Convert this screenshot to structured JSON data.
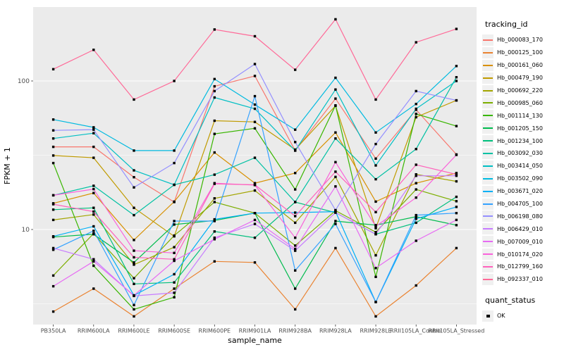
{
  "figure": {
    "background": "#FFFFFF",
    "panel_background": "#EBEBEB",
    "gridline_color": "#FFFFFF",
    "tick_label_color": "#4D4D4D",
    "axis_title_color": "#000000",
    "marker_color": "#000000"
  },
  "chart_data": {
    "type": "line",
    "title": "",
    "xlabel": "sample_name",
    "ylabel": "FPKM + 1",
    "y_scale": "log10",
    "y_ticks": [
      10,
      100
    ],
    "y_minor_ticks": [
      3.162,
      31.62
    ],
    "ylim": [
      2.3,
      320
    ],
    "grid": true,
    "marker": {
      "shape": "square",
      "color": "#000000"
    },
    "categories": [
      "PB350LA",
      "RRIM600LA",
      "RRIM600LE",
      "RRIM600SE",
      "RRIM600PE",
      "RRIM901LA",
      "RRIM928BA",
      "RRIM928LA",
      "RRIM928LE",
      "RRII105LA_Control",
      "RRII105LA_Stressed"
    ],
    "legend": {
      "title": "tracking_id",
      "position": "right"
    },
    "quant_status": {
      "title": "quant_status",
      "items": [
        {
          "label": "OK",
          "marker": "black-square"
        }
      ]
    },
    "series": [
      {
        "name": "Hb_000083_170",
        "color": "#F8766D",
        "values": [
          36,
          36,
          22.5,
          15.3,
          92,
          108,
          34,
          76,
          30,
          64,
          32
        ]
      },
      {
        "name": "Hb_000125_100",
        "color": "#EA8331",
        "values": [
          2.8,
          4.0,
          2.6,
          4.0,
          6.1,
          6.0,
          2.9,
          7.5,
          2.6,
          4.2,
          7.5
        ]
      },
      {
        "name": "Hb_000161_060",
        "color": "#D89000",
        "values": [
          15,
          17.6,
          8.5,
          15.4,
          33,
          20.5,
          24,
          45,
          15.4,
          20.5,
          24
        ]
      },
      {
        "name": "Hb_000479_190",
        "color": "#C09B00",
        "values": [
          31.5,
          30.4,
          14,
          9.0,
          54,
          53,
          34.5,
          68,
          10.2,
          57,
          74
        ]
      },
      {
        "name": "Hb_000692_220",
        "color": "#A3A500",
        "values": [
          11.6,
          12.6,
          5.8,
          7.6,
          16.2,
          18.3,
          11.1,
          22.6,
          6.7,
          23.5,
          21.1
        ]
      },
      {
        "name": "Hb_000985_060",
        "color": "#7CAE00",
        "values": [
          4.9,
          9.4,
          4.7,
          9.1,
          15.3,
          12.9,
          7.8,
          13.4,
          9.6,
          18.6,
          15.5
        ]
      },
      {
        "name": "Hb_001114_130",
        "color": "#39B600",
        "values": [
          28,
          5.7,
          2.9,
          3.5,
          44,
          48,
          18.6,
          68.5,
          4.8,
          60,
          49.7
        ]
      },
      {
        "name": "Hb_001205_150",
        "color": "#00BB4E",
        "values": [
          8.9,
          9.3,
          6.0,
          10.8,
          11.5,
          12.9,
          4.0,
          11.4,
          10.7,
          12.2,
          10.7
        ]
      },
      {
        "name": "Hb_001234_100",
        "color": "#00BF7D",
        "values": [
          13.6,
          14.0,
          4.3,
          4.4,
          9.7,
          8.8,
          15.3,
          13.0,
          9.3,
          11.1,
          16.6
        ]
      },
      {
        "name": "Hb_003092_030",
        "color": "#00C1A3",
        "values": [
          17,
          19.7,
          12.5,
          20,
          23.4,
          30.4,
          15.3,
          41,
          21.8,
          34.8,
          106
        ]
      },
      {
        "name": "Hb_003414_050",
        "color": "#00BFC4",
        "values": [
          41,
          44.5,
          25,
          20,
          77.4,
          65,
          34,
          87.5,
          27,
          65,
          100
        ]
      },
      {
        "name": "Hb_003502_090",
        "color": "#00BAE0",
        "values": [
          55,
          48.7,
          34,
          34,
          103,
          69.3,
          47,
          105,
          45,
          70,
          126
        ]
      },
      {
        "name": "Hb_003671_020",
        "color": "#00B0F6",
        "values": [
          9.0,
          10.5,
          3.6,
          5.0,
          11.7,
          12.9,
          13,
          13.2,
          3.25,
          11.8,
          14.2
        ]
      },
      {
        "name": "Hb_004705_100",
        "color": "#35A2FF",
        "values": [
          7.3,
          9.8,
          3.1,
          11.4,
          11.4,
          79,
          5.3,
          10.9,
          3.25,
          12.5,
          12.9
        ]
      },
      {
        "name": "Hb_006198_080",
        "color": "#9590FF",
        "values": [
          46.5,
          47,
          19.2,
          28,
          85.5,
          130,
          38.8,
          13.5,
          37.6,
          85.5,
          74
        ]
      },
      {
        "name": "Hb_006429_010",
        "color": "#C77CFF",
        "values": [
          7.5,
          6.3,
          3.57,
          3.75,
          8.8,
          10.9,
          7.2,
          13,
          9.3,
          23,
          23
        ]
      },
      {
        "name": "Hb_007009_010",
        "color": "#E76BF3",
        "values": [
          4.15,
          6.1,
          3.6,
          6.15,
          8.6,
          11.6,
          7.4,
          19.5,
          5.5,
          8.4,
          11.6
        ]
      },
      {
        "name": "Hb_010174_020",
        "color": "#FA62DB",
        "values": [
          17,
          18.7,
          7.2,
          6.95,
          20.5,
          19.9,
          8.8,
          28.4,
          10.5,
          16.4,
          31.8
        ]
      },
      {
        "name": "Hb_012799_160",
        "color": "#FF62BC",
        "values": [
          14.8,
          13.2,
          6.5,
          6.3,
          20.3,
          20,
          12.3,
          24.5,
          13.1,
          27.3,
          23.5
        ]
      },
      {
        "name": "Hb_092337_010",
        "color": "#FF6A98",
        "values": [
          120,
          162,
          75,
          100,
          222,
          200,
          119,
          260,
          75,
          182,
          224
        ]
      }
    ]
  }
}
